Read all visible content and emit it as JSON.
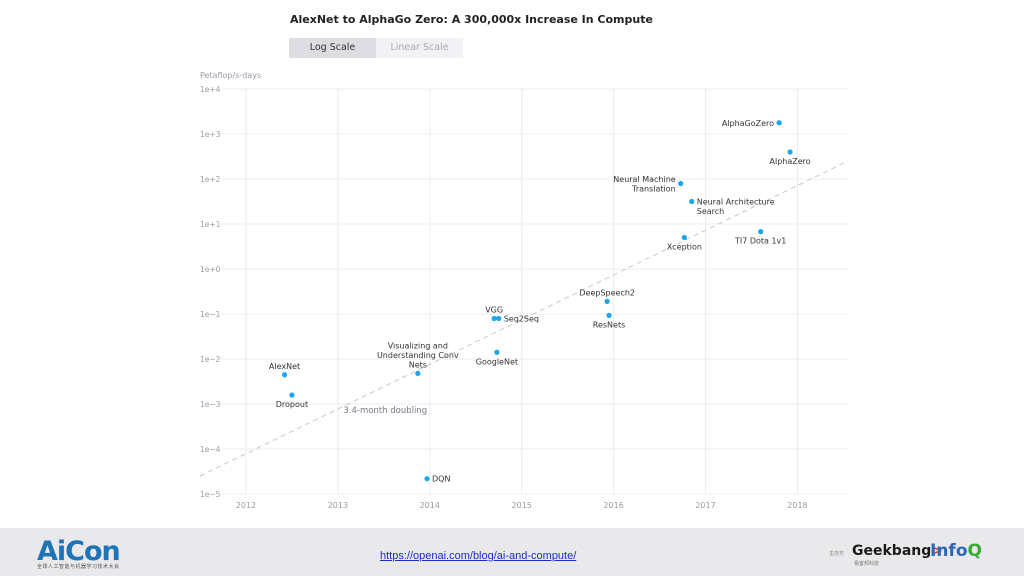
{
  "tabs": [
    {
      "label": "Log Scale",
      "active": true
    },
    {
      "label": "Linear Scale",
      "active": false
    }
  ],
  "chart_data": {
    "type": "scatter",
    "title": "AlexNet to AlphaGo Zero: A 300,000x Increase In Compute",
    "ylabel": "Petaflop/s-days",
    "xlabel": "",
    "y_scale": "log",
    "xlim": [
      2011.5,
      2018.55
    ],
    "ylim_exp": [
      -5,
      4
    ],
    "x_ticks": [
      {
        "value": 2012,
        "label": "2012"
      },
      {
        "value": 2013,
        "label": "2013"
      },
      {
        "value": 2014,
        "label": "2014"
      },
      {
        "value": 2015,
        "label": "2015"
      },
      {
        "value": 2016,
        "label": "2016"
      },
      {
        "value": 2017,
        "label": "2017"
      },
      {
        "value": 2018,
        "label": "2018"
      }
    ],
    "y_ticks": [
      {
        "exp": 4,
        "label": "1e+4"
      },
      {
        "exp": 3,
        "label": "1e+3"
      },
      {
        "exp": 2,
        "label": "1e+2"
      },
      {
        "exp": 1,
        "label": "1e+1"
      },
      {
        "exp": 0,
        "label": "1e+0"
      },
      {
        "exp": -1,
        "label": "1e−1"
      },
      {
        "exp": -2,
        "label": "1e−2"
      },
      {
        "exp": -3,
        "label": "1e−3"
      },
      {
        "exp": -4,
        "label": "1e−4"
      },
      {
        "exp": -5,
        "label": "1e−5"
      }
    ],
    "points": [
      {
        "name": "AlexNet",
        "lines": [
          "AlexNet"
        ],
        "x": 2012.42,
        "log_y": -2.35,
        "label_side": "above"
      },
      {
        "name": "Dropout",
        "lines": [
          "Dropout"
        ],
        "x": 2012.5,
        "log_y": -2.8,
        "label_side": "below"
      },
      {
        "name": "Visualizing and Understanding Conv Nets",
        "lines": [
          "Visualizing and",
          "Understanding Conv",
          "Nets"
        ],
        "x": 2013.87,
        "log_y": -2.32,
        "label_side": "above"
      },
      {
        "name": "DQN",
        "lines": [
          "DQN"
        ],
        "x": 2013.97,
        "log_y": -4.66,
        "label_side": "right"
      },
      {
        "name": "VGG",
        "lines": [
          "VGG"
        ],
        "x": 2014.7,
        "log_y": -1.1,
        "label_side": "above"
      },
      {
        "name": "Seq2Seq",
        "lines": [
          "Seq2Seq"
        ],
        "x": 2014.75,
        "log_y": -1.1,
        "label_side": "right"
      },
      {
        "name": "GoogleNet",
        "lines": [
          "GoogleNet"
        ],
        "x": 2014.73,
        "log_y": -1.85,
        "label_side": "below"
      },
      {
        "name": "DeepSpeech2",
        "lines": [
          "DeepSpeech2"
        ],
        "x": 2015.93,
        "log_y": -0.72,
        "label_side": "above"
      },
      {
        "name": "ResNets",
        "lines": [
          "ResNets"
        ],
        "x": 2015.95,
        "log_y": -1.03,
        "label_side": "below"
      },
      {
        "name": "Neural Machine Translation",
        "lines": [
          "Neural Machine",
          "Translation"
        ],
        "x": 2016.73,
        "log_y": 1.9,
        "label_side": "left"
      },
      {
        "name": "Neural Architecture Search",
        "lines": [
          "Neural Architecture",
          "Search"
        ],
        "x": 2016.85,
        "log_y": 1.5,
        "label_side": "right"
      },
      {
        "name": "Xception",
        "lines": [
          "Xception"
        ],
        "x": 2016.77,
        "log_y": 0.7,
        "label_side": "below"
      },
      {
        "name": "TI7 Dota 1v1",
        "lines": [
          "TI7 Dota 1v1"
        ],
        "x": 2017.6,
        "log_y": 0.83,
        "label_side": "below"
      },
      {
        "name": "AlphaGoZero",
        "lines": [
          "AlphaGoZero"
        ],
        "x": 2017.8,
        "log_y": 3.25,
        "label_side": "left"
      },
      {
        "name": "AlphaZero",
        "lines": [
          "AlphaZero"
        ],
        "x": 2017.92,
        "log_y": 2.6,
        "label_side": "below"
      }
    ],
    "trend": {
      "label": "3.4-month doubling",
      "start": {
        "x": 2011.5,
        "log_y": -4.6
      },
      "end": {
        "x": 2018.55,
        "log_y": 2.4
      }
    }
  },
  "footer": {
    "logo": "AiCon",
    "logo_sub": "全球人工智能与机器学习技术大会",
    "url": "https://openai.com/blog/ai-and-compute/",
    "host_label": "主办方",
    "geekbang": "Geekbang",
    "geekbang_arrow": ">.",
    "geekbang_sub": "极客邦科技",
    "infoq": "Info",
    "infoq_q": "Q"
  },
  "colors": {
    "point": "#1aa7ec",
    "grid": "#ececef",
    "trend": "#c8c8cc",
    "tick": "#9a9aa4",
    "label": "#333333"
  }
}
